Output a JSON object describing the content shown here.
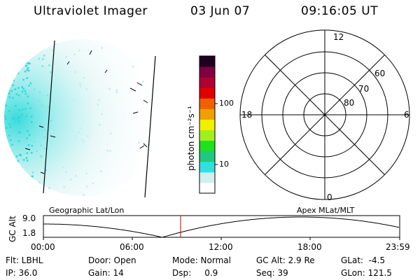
{
  "header": {
    "title": "Ultraviolet Imager",
    "date": "03 Jun 07",
    "time": "09:16:05 UT"
  },
  "colorbar": {
    "unit": "photon cm⁻²s⁻¹",
    "ticks": [
      "100",
      "10"
    ],
    "colors": [
      "#ffffff",
      "#d0f0f0",
      "#30e0e0",
      "#20c880",
      "#20e020",
      "#a0f020",
      "#f0f000",
      "#f0a000",
      "#f06000",
      "#e00000",
      "#b00030",
      "#800040",
      "#200020"
    ]
  },
  "polar_grid": {
    "mlt_labels": [
      "12",
      "18",
      "6",
      "0"
    ],
    "mlat_labels": [
      "60",
      "70",
      "80"
    ]
  },
  "orbit_plot": {
    "left_title": "Geographic Lat/Lon",
    "right_title": "Apex  MLat/MLT",
    "y_axis_label": "GC Alt",
    "y_ticks": [
      "9.0",
      "1.8"
    ],
    "x_ticks": [
      "00:00",
      "06:00",
      "12:00",
      "18:00",
      "23:59"
    ],
    "marker_color": "#c00000"
  },
  "footer": {
    "flt": "Flt: LBHL",
    "door": "Door: Open",
    "mode": "Mode: Normal",
    "gc_alt": "GC Alt: 2.9 Re",
    "glat": "GLat:  -4.5",
    "ip": "IP: 36.0",
    "gain": "Gain: 14",
    "dsp": "Dsp:     0.9",
    "seq": "Seq: 39",
    "glon": "GLon: 121.5"
  }
}
